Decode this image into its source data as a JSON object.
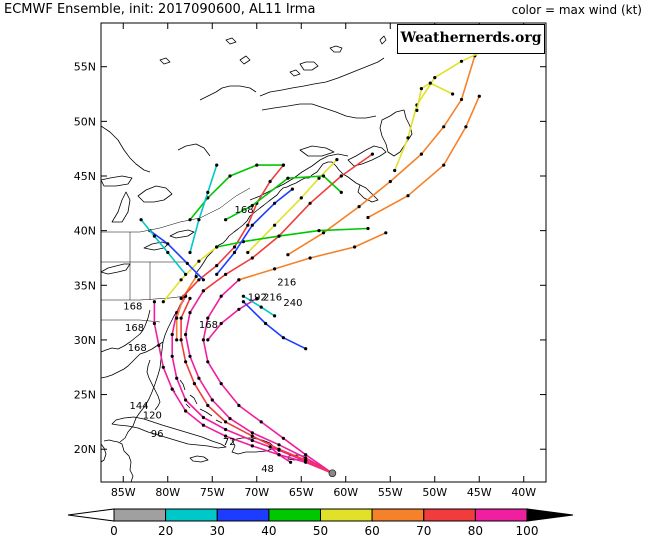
{
  "header": {
    "title": "ECMWF Ensemble, init: 2017090600, AL11 Irma",
    "color_note": "color = max wind (kt)"
  },
  "brand": {
    "label": "Weathernerds.org"
  },
  "map": {
    "lat_labels": [
      "55N",
      "50N",
      "45N",
      "40N",
      "35N",
      "30N",
      "25N",
      "20N"
    ],
    "lon_labels": [
      "85W",
      "80W",
      "75W",
      "70W",
      "65W",
      "60W",
      "55W",
      "50W",
      "45W",
      "40W"
    ],
    "lat_values": [
      55,
      50,
      45,
      40,
      35,
      30,
      25,
      20
    ],
    "lon_values": [
      -85,
      -80,
      -75,
      -70,
      -65,
      -60,
      -55,
      -50,
      -45,
      -40
    ],
    "extent": {
      "lon": [
        -87.5,
        -37.5
      ],
      "lat": [
        17,
        59
      ]
    },
    "forecast_hour_labels": [
      "168",
      "216",
      "192",
      "216",
      "240",
      "168",
      "168",
      "144",
      "120",
      "96",
      "72",
      "48",
      "168",
      "168"
    ],
    "tracks": [
      {
        "color": "#f01fa0",
        "points": [
          [
            -61.5,
            17.8
          ],
          [
            -64.5,
            18.8
          ],
          [
            -67.5,
            19.5
          ],
          [
            -70.5,
            20.3
          ],
          [
            -73.5,
            21.2
          ],
          [
            -76,
            22.2
          ],
          [
            -78,
            23.5
          ],
          [
            -79.5,
            25.5
          ],
          [
            -80.5,
            27.5
          ],
          [
            -81,
            29.5
          ],
          [
            -81.5,
            31.5
          ],
          [
            -81.5,
            33.5
          ]
        ]
      },
      {
        "color": "#f01fa0",
        "points": [
          [
            -61.5,
            17.8
          ],
          [
            -64.5,
            18.9
          ],
          [
            -67.5,
            19.9
          ],
          [
            -70.5,
            20.8
          ],
          [
            -73.5,
            21.8
          ],
          [
            -76,
            22.9
          ],
          [
            -78,
            24.5
          ],
          [
            -79,
            26.5
          ],
          [
            -79.5,
            28.5
          ],
          [
            -79.5,
            30.5
          ],
          [
            -79,
            32.5
          ],
          [
            -78,
            34
          ]
        ]
      },
      {
        "color": "#f01fa0",
        "points": [
          [
            -61.5,
            17.8
          ],
          [
            -64.5,
            19.2
          ],
          [
            -67.5,
            20.4
          ],
          [
            -70.5,
            21.5
          ],
          [
            -73,
            22.8
          ],
          [
            -75,
            24.5
          ],
          [
            -76.5,
            26.5
          ],
          [
            -77.5,
            28.5
          ],
          [
            -78,
            30.5
          ],
          [
            -77.5,
            32.5
          ],
          [
            -76,
            34.5
          ]
        ]
      },
      {
        "color": "#f01fa0",
        "points": [
          [
            -61.5,
            17.8
          ],
          [
            -64.5,
            19.5
          ],
          [
            -67,
            21
          ],
          [
            -69.5,
            22.5
          ],
          [
            -72,
            24
          ],
          [
            -74,
            26
          ],
          [
            -75.5,
            28
          ],
          [
            -76,
            30
          ],
          [
            -75.5,
            32
          ],
          [
            -74,
            34
          ],
          [
            -72,
            35.5
          ]
        ]
      },
      {
        "color": "#f03c3c",
        "points": [
          [
            -61.5,
            17.8
          ],
          [
            -64.5,
            19
          ],
          [
            -67.5,
            20
          ],
          [
            -70.5,
            21.2
          ],
          [
            -73.5,
            22.5
          ],
          [
            -75.5,
            24
          ],
          [
            -77,
            26
          ],
          [
            -78,
            28
          ],
          [
            -78.5,
            30
          ],
          [
            -78.5,
            32
          ],
          [
            -77.5,
            33.8
          ]
        ]
      },
      {
        "color": "#f5822a",
        "points": [
          [
            -79,
            30
          ],
          [
            -79,
            32
          ],
          [
            -78.2,
            34
          ],
          [
            -76.8,
            35.8
          ]
        ]
      },
      {
        "color": "#f01fa0",
        "points": [
          [
            -75.5,
            30
          ],
          [
            -74,
            31.5
          ],
          [
            -72,
            32.8
          ],
          [
            -70,
            33.8
          ]
        ]
      },
      {
        "color": "#f03c3c",
        "points": [
          [
            -78.5,
            33.8
          ],
          [
            -76.5,
            35.5
          ],
          [
            -74.5,
            36.8
          ],
          [
            -72.5,
            38.5
          ],
          [
            -71,
            40.5
          ],
          [
            -70,
            42.5
          ],
          [
            -68.5,
            44.5
          ],
          [
            -67,
            46
          ]
        ]
      },
      {
        "color": "#f03c3c",
        "points": [
          [
            -76,
            34.5
          ],
          [
            -73.5,
            36
          ],
          [
            -70.5,
            37.5
          ],
          [
            -67.5,
            39.5
          ],
          [
            -64,
            42.5
          ],
          [
            -60.5,
            45
          ],
          [
            -57,
            47
          ]
        ]
      },
      {
        "color": "#f5822a",
        "points": [
          [
            -72,
            35.5
          ],
          [
            -68,
            36.5
          ],
          [
            -64,
            37.5
          ],
          [
            -59,
            38.5
          ],
          [
            -55.5,
            39.8
          ]
        ]
      },
      {
        "color": "#f5822a",
        "points": [
          [
            -66.5,
            37.8
          ],
          [
            -62.5,
            39.8
          ],
          [
            -58.5,
            42.2
          ],
          [
            -55,
            44.5
          ],
          [
            -51.5,
            47
          ],
          [
            -49,
            49.5
          ],
          [
            -47,
            52
          ],
          [
            -45.5,
            56
          ]
        ]
      },
      {
        "color": "#f5822a",
        "points": [
          [
            -57.5,
            41.2
          ],
          [
            -53,
            43.2
          ],
          [
            -49,
            46
          ],
          [
            -46.5,
            49.5
          ],
          [
            -45,
            52.3
          ]
        ]
      },
      {
        "color": "#e1e12a",
        "points": [
          [
            -54.5,
            45.5
          ],
          [
            -53,
            48.5
          ],
          [
            -52,
            51.5
          ],
          [
            -50,
            54
          ],
          [
            -47,
            55.5
          ],
          [
            -41,
            57.8
          ]
        ]
      },
      {
        "color": "#e1e12a",
        "points": [
          [
            -71,
            38
          ],
          [
            -68,
            40.5
          ],
          [
            -65,
            43
          ],
          [
            -63,
            44.8
          ],
          [
            -61,
            46.5
          ]
        ]
      },
      {
        "color": "#e1e12a",
        "points": [
          [
            -48,
            52.5
          ],
          [
            -50.5,
            53.5
          ],
          [
            -51.5,
            53
          ],
          [
            -52,
            51
          ]
        ]
      },
      {
        "color": "#e1e12a",
        "points": [
          [
            -80.5,
            33.5
          ],
          [
            -78.5,
            35.5
          ],
          [
            -76.5,
            37.2
          ],
          [
            -74.5,
            38.5
          ]
        ]
      },
      {
        "color": "#00c800",
        "points": [
          [
            -73.5,
            41
          ],
          [
            -70.5,
            42.3
          ],
          [
            -66.5,
            44.8
          ],
          [
            -62.5,
            45
          ],
          [
            -60.5,
            43.5
          ]
        ]
      },
      {
        "color": "#00c800",
        "points": [
          [
            -74.5,
            38.5
          ],
          [
            -71.5,
            39
          ],
          [
            -67.5,
            39.5
          ],
          [
            -63,
            40
          ],
          [
            -57.5,
            40.2
          ]
        ]
      },
      {
        "color": "#00c800",
        "points": [
          [
            -77.5,
            41
          ],
          [
            -75.5,
            43
          ],
          [
            -73,
            45
          ],
          [
            -70,
            46
          ],
          [
            -67,
            46
          ]
        ]
      },
      {
        "color": "#1e3cff",
        "points": [
          [
            -76,
            35.5
          ],
          [
            -77.8,
            37
          ],
          [
            -80,
            38.8
          ],
          [
            -82,
            40
          ]
        ]
      },
      {
        "color": "#1e3cff",
        "points": [
          [
            -71.5,
            33.5
          ],
          [
            -69,
            31.5
          ],
          [
            -67,
            30.2
          ],
          [
            -64.5,
            29.2
          ]
        ]
      },
      {
        "color": "#1e3cff",
        "points": [
          [
            -74.5,
            36
          ],
          [
            -72.5,
            38
          ],
          [
            -70.5,
            40.5
          ],
          [
            -68,
            42.5
          ],
          [
            -66,
            43.8
          ]
        ]
      },
      {
        "color": "#00c8c8",
        "points": [
          [
            -78,
            36
          ],
          [
            -80,
            38
          ],
          [
            -81.5,
            39.5
          ],
          [
            -83,
            41
          ]
        ]
      },
      {
        "color": "#00c8c8",
        "points": [
          [
            -77.5,
            38
          ],
          [
            -76.5,
            41
          ],
          [
            -75.5,
            43.5
          ],
          [
            -74.5,
            46
          ]
        ]
      },
      {
        "color": "#00c8c8",
        "points": [
          [
            -71.5,
            34
          ],
          [
            -69.5,
            33
          ],
          [
            -68,
            32.2
          ]
        ]
      },
      {
        "color": "#f01fa0",
        "points": [
          [
            -68.5,
            20.2
          ],
          [
            -67.5,
            19.5
          ],
          [
            -66.2,
            18.8
          ]
        ]
      }
    ],
    "dot_color": "#000000"
  },
  "colorbar": {
    "ticks": [
      "0",
      "20",
      "30",
      "40",
      "50",
      "60",
      "70",
      "80",
      "100"
    ],
    "colors": [
      "#a0a0a0",
      "#00c8c8",
      "#1e3cff",
      "#00c800",
      "#e1e12a",
      "#f5822a",
      "#f03c3c",
      "#f01fa0"
    ]
  }
}
